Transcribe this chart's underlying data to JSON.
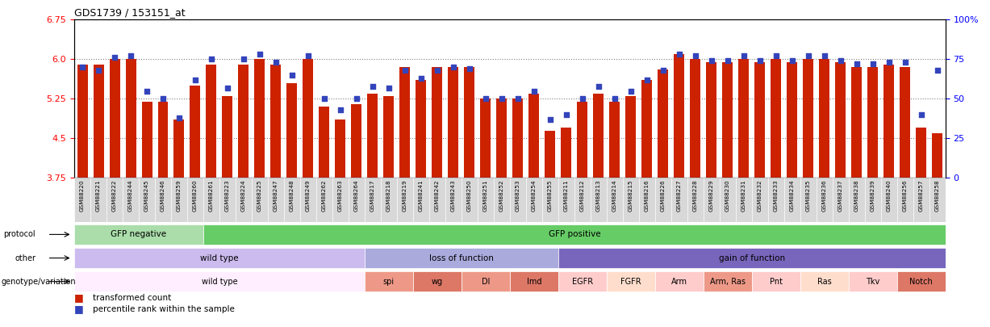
{
  "title": "GDS1739 / 153151_at",
  "ylim": [
    3.75,
    6.75
  ],
  "yticks": [
    3.75,
    4.5,
    5.25,
    6.0,
    6.75
  ],
  "right_yticks": [
    0,
    25,
    50,
    75,
    100
  ],
  "right_ylim": [
    0,
    100
  ],
  "bar_color": "#cc2200",
  "dot_color": "#3344bb",
  "samples": [
    "GSM88220",
    "GSM88221",
    "GSM88222",
    "GSM88244",
    "GSM88245",
    "GSM88246",
    "GSM88259",
    "GSM88260",
    "GSM88261",
    "GSM88223",
    "GSM88224",
    "GSM88225",
    "GSM88247",
    "GSM88248",
    "GSM88249",
    "GSM88262",
    "GSM88263",
    "GSM88264",
    "GSM88217",
    "GSM88218",
    "GSM88219",
    "GSM88241",
    "GSM88242",
    "GSM88243",
    "GSM88250",
    "GSM88251",
    "GSM88252",
    "GSM88253",
    "GSM88254",
    "GSM88255",
    "GSM88211",
    "GSM88212",
    "GSM88213",
    "GSM88214",
    "GSM88215",
    "GSM88216",
    "GSM88226",
    "GSM88227",
    "GSM88228",
    "GSM88229",
    "GSM88230",
    "GSM88231",
    "GSM88232",
    "GSM88233",
    "GSM88234",
    "GSM88235",
    "GSM88236",
    "GSM88237",
    "GSM88238",
    "GSM88239",
    "GSM88240",
    "GSM88256",
    "GSM88257",
    "GSM88258"
  ],
  "bar_values": [
    5.9,
    5.9,
    6.0,
    6.0,
    5.2,
    5.2,
    4.85,
    5.5,
    5.9,
    5.3,
    5.9,
    6.0,
    5.9,
    5.55,
    6.0,
    5.1,
    4.85,
    5.15,
    5.35,
    5.3,
    5.85,
    5.6,
    5.85,
    5.85,
    5.85,
    5.25,
    5.25,
    5.25,
    5.35,
    4.65,
    4.7,
    5.2,
    5.35,
    5.2,
    5.3,
    5.6,
    5.8,
    6.1,
    6.0,
    5.95,
    5.95,
    6.0,
    5.95,
    6.0,
    5.95,
    6.0,
    6.0,
    5.95,
    5.85,
    5.85,
    5.9,
    5.85,
    4.7,
    4.6
  ],
  "dot_values": [
    70,
    68,
    76,
    77,
    55,
    50,
    38,
    62,
    75,
    57,
    75,
    78,
    73,
    65,
    77,
    50,
    43,
    50,
    58,
    57,
    68,
    63,
    68,
    70,
    69,
    50,
    50,
    50,
    55,
    37,
    40,
    50,
    58,
    50,
    55,
    62,
    68,
    78,
    77,
    74,
    74,
    77,
    74,
    77,
    74,
    77,
    77,
    74,
    72,
    72,
    73,
    73,
    40,
    68
  ],
  "protocol_blocks": [
    {
      "label": "GFP negative",
      "start": 0,
      "end": 8,
      "color": "#aaddaa"
    },
    {
      "label": "GFP positive",
      "start": 8,
      "end": 54,
      "color": "#66cc66"
    }
  ],
  "other_blocks": [
    {
      "label": "wild type",
      "start": 0,
      "end": 18,
      "color": "#ccbbee"
    },
    {
      "label": "loss of function",
      "start": 18,
      "end": 30,
      "color": "#aaaadd"
    },
    {
      "label": "gain of function",
      "start": 30,
      "end": 54,
      "color": "#7766bb"
    }
  ],
  "genotype_blocks": [
    {
      "label": "wild type",
      "start": 0,
      "end": 18,
      "color": "#ffeeff"
    },
    {
      "label": "spi",
      "start": 18,
      "end": 21,
      "color": "#ee9988"
    },
    {
      "label": "wg",
      "start": 21,
      "end": 24,
      "color": "#dd7766"
    },
    {
      "label": "Dl",
      "start": 24,
      "end": 27,
      "color": "#ee9988"
    },
    {
      "label": "Imd",
      "start": 27,
      "end": 30,
      "color": "#dd7766"
    },
    {
      "label": "EGFR",
      "start": 30,
      "end": 33,
      "color": "#ffcccc"
    },
    {
      "label": "FGFR",
      "start": 33,
      "end": 36,
      "color": "#ffddcc"
    },
    {
      "label": "Arm",
      "start": 36,
      "end": 39,
      "color": "#ffcccc"
    },
    {
      "label": "Arm, Ras",
      "start": 39,
      "end": 42,
      "color": "#ee9988"
    },
    {
      "label": "Pnt",
      "start": 42,
      "end": 45,
      "color": "#ffcccc"
    },
    {
      "label": "Ras",
      "start": 45,
      "end": 48,
      "color": "#ffddcc"
    },
    {
      "label": "Tkv",
      "start": 48,
      "end": 51,
      "color": "#ffcccc"
    },
    {
      "label": "Notch",
      "start": 51,
      "end": 54,
      "color": "#dd7766"
    }
  ],
  "legend_bar_color": "#cc2200",
  "legend_dot_color": "#3344bb"
}
